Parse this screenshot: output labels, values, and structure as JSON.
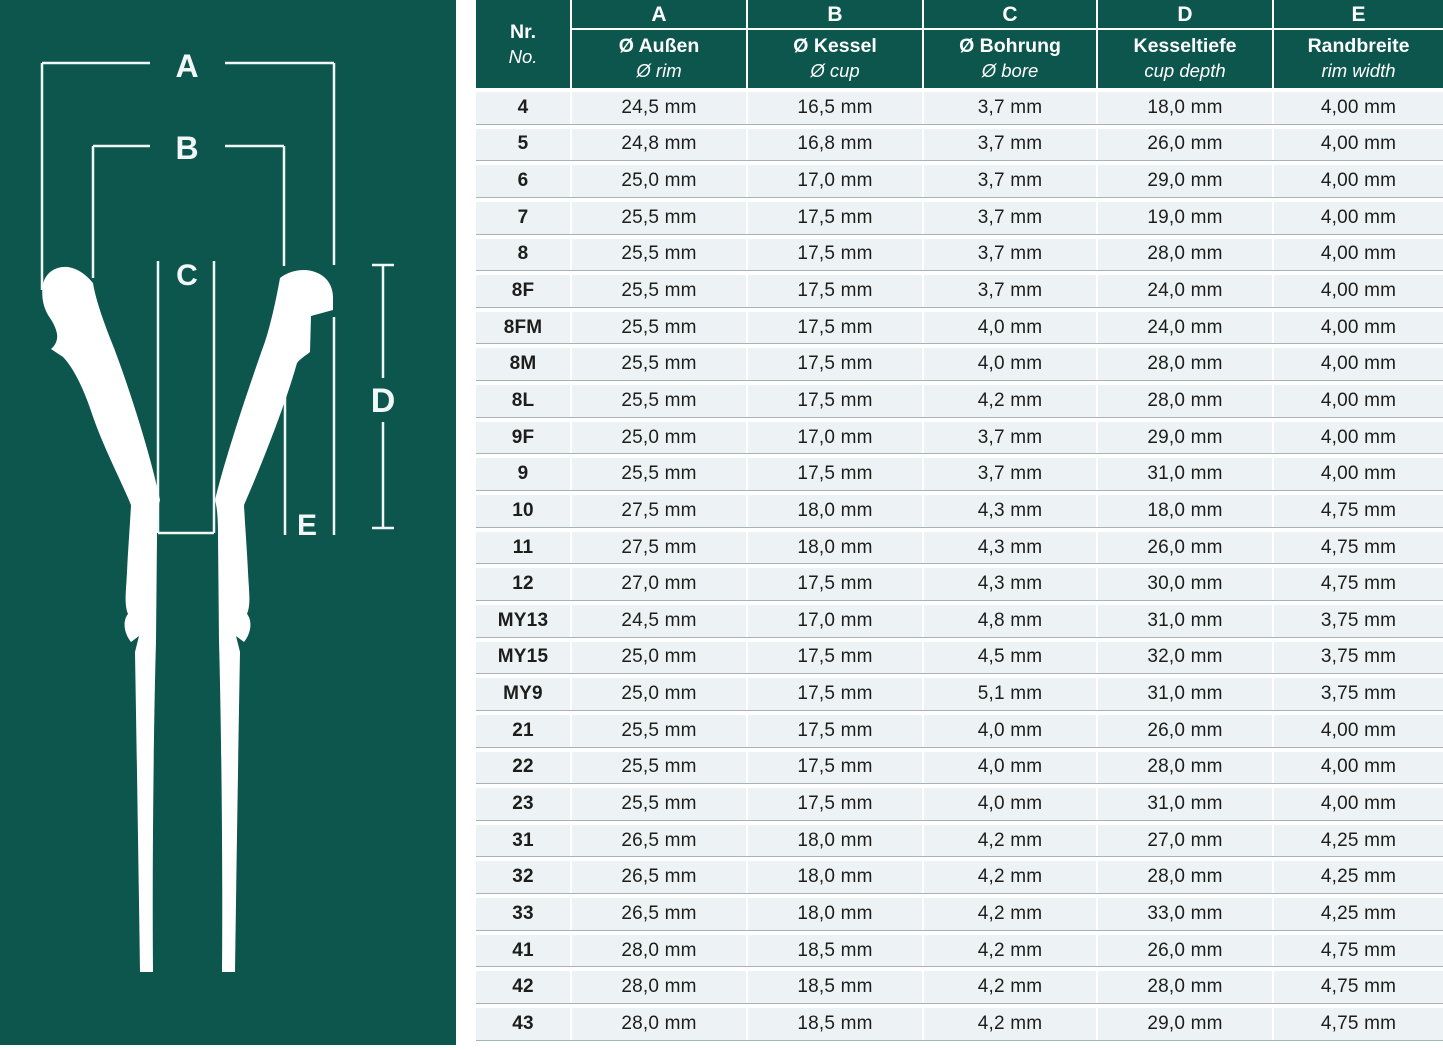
{
  "diagram": {
    "labels": [
      "A",
      "B",
      "C",
      "D",
      "E"
    ]
  },
  "table": {
    "columns": [
      {
        "letter": "",
        "title_de": "Nr.",
        "title_en": "No."
      },
      {
        "letter": "A",
        "title_de": "Ø Außen",
        "title_en": "Ø rim"
      },
      {
        "letter": "B",
        "title_de": "Ø Kessel",
        "title_en": "Ø cup"
      },
      {
        "letter": "C",
        "title_de": "Ø Bohrung",
        "title_en": "Ø bore"
      },
      {
        "letter": "D",
        "title_de": "Kesseltiefe",
        "title_en": "cup depth"
      },
      {
        "letter": "E",
        "title_de": "Randbreite",
        "title_en": "rim width"
      }
    ],
    "rows": [
      {
        "no": "4",
        "values": [
          "24,5 mm",
          "16,5 mm",
          "3,7 mm",
          "18,0 mm",
          "4,00 mm"
        ]
      },
      {
        "no": "5",
        "values": [
          "24,8 mm",
          "16,8 mm",
          "3,7 mm",
          "26,0 mm",
          "4,00 mm"
        ]
      },
      {
        "no": "6",
        "values": [
          "25,0 mm",
          "17,0 mm",
          "3,7 mm",
          "29,0 mm",
          "4,00 mm"
        ]
      },
      {
        "no": "7",
        "values": [
          "25,5 mm",
          "17,5 mm",
          "3,7 mm",
          "19,0 mm",
          "4,00 mm"
        ]
      },
      {
        "no": "8",
        "values": [
          "25,5 mm",
          "17,5 mm",
          "3,7 mm",
          "28,0 mm",
          "4,00 mm"
        ]
      },
      {
        "no": "8F",
        "values": [
          "25,5 mm",
          "17,5 mm",
          "3,7 mm",
          "24,0 mm",
          "4,00 mm"
        ]
      },
      {
        "no": "8FM",
        "values": [
          "25,5 mm",
          "17,5 mm",
          "4,0 mm",
          "24,0 mm",
          "4,00 mm"
        ]
      },
      {
        "no": "8M",
        "values": [
          "25,5 mm",
          "17,5 mm",
          "4,0 mm",
          "28,0 mm",
          "4,00 mm"
        ]
      },
      {
        "no": "8L",
        "values": [
          "25,5 mm",
          "17,5 mm",
          "4,2 mm",
          "28,0 mm",
          "4,00 mm"
        ]
      },
      {
        "no": "9F",
        "values": [
          "25,0 mm",
          "17,0 mm",
          "3,7 mm",
          "29,0 mm",
          "4,00 mm"
        ]
      },
      {
        "no": "9",
        "values": [
          "25,5 mm",
          "17,5 mm",
          "3,7 mm",
          "31,0 mm",
          "4,00 mm"
        ]
      },
      {
        "no": "10",
        "values": [
          "27,5 mm",
          "18,0 mm",
          "4,3 mm",
          "18,0 mm",
          "4,75 mm"
        ]
      },
      {
        "no": "11",
        "values": [
          "27,5 mm",
          "18,0 mm",
          "4,3 mm",
          "26,0 mm",
          "4,75 mm"
        ]
      },
      {
        "no": "12",
        "values": [
          "27,0 mm",
          "17,5 mm",
          "4,3 mm",
          "30,0 mm",
          "4,75 mm"
        ]
      },
      {
        "no": "MY13",
        "values": [
          "24,5 mm",
          "17,0 mm",
          "4,8 mm",
          "31,0 mm",
          "3,75 mm"
        ]
      },
      {
        "no": "MY15",
        "values": [
          "25,0 mm",
          "17,5 mm",
          "4,5 mm",
          "32,0 mm",
          "3,75 mm"
        ]
      },
      {
        "no": "MY9",
        "values": [
          "25,0 mm",
          "17,5 mm",
          "5,1 mm",
          "31,0 mm",
          "3,75 mm"
        ]
      },
      {
        "no": "21",
        "values": [
          "25,5 mm",
          "17,5 mm",
          "4,0 mm",
          "26,0 mm",
          "4,00 mm"
        ]
      },
      {
        "no": "22",
        "values": [
          "25,5 mm",
          "17,5 mm",
          "4,0 mm",
          "28,0 mm",
          "4,00 mm"
        ]
      },
      {
        "no": "23",
        "values": [
          "25,5 mm",
          "17,5 mm",
          "4,0 mm",
          "31,0 mm",
          "4,00 mm"
        ]
      },
      {
        "no": "31",
        "values": [
          "26,5 mm",
          "18,0 mm",
          "4,2 mm",
          "27,0 mm",
          "4,25 mm"
        ]
      },
      {
        "no": "32",
        "values": [
          "26,5 mm",
          "18,0 mm",
          "4,2 mm",
          "28,0 mm",
          "4,25 mm"
        ]
      },
      {
        "no": "33",
        "values": [
          "26,5 mm",
          "18,0 mm",
          "4,2 mm",
          "33,0 mm",
          "4,25 mm"
        ]
      },
      {
        "no": "41",
        "values": [
          "28,0 mm",
          "18,5 mm",
          "4,2 mm",
          "26,0 mm",
          "4,75 mm"
        ]
      },
      {
        "no": "42",
        "values": [
          "28,0 mm",
          "18,5 mm",
          "4,2 mm",
          "28,0 mm",
          "4,75 mm"
        ]
      },
      {
        "no": "43",
        "values": [
          "28,0 mm",
          "18,5 mm",
          "4,2 mm",
          "29,0 mm",
          "4,75 mm"
        ]
      }
    ]
  },
  "colors": {
    "teal_background": "#0c564d",
    "row_background": "#edf3f4",
    "row_separator": "#a7b3b5",
    "text_dark": "#1d1d1b",
    "text_light": "#ffffff"
  }
}
